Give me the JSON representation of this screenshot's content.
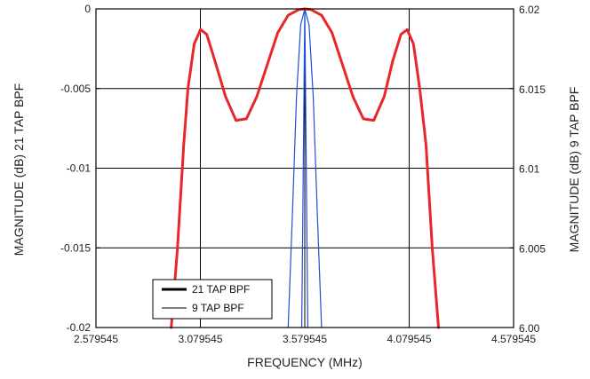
{
  "chart_data": {
    "type": "line",
    "xlabel": "FREQUENCY (MHz)",
    "ylabel_left": "MAGNITUDE (dB) 21 TAP BPF",
    "ylabel_right": "MAGNITUDE (dB) 9 TAP BPF",
    "xlim": [
      2.579545,
      4.579545
    ],
    "ylim_left": [
      -0.02,
      0
    ],
    "ylim_right": [
      6.0,
      6.02
    ],
    "x_ticks": [
      2.579545,
      3.079545,
      3.579545,
      4.079545,
      4.579545
    ],
    "x_tick_labels": [
      "2.579545",
      "3.079545",
      "3.579545",
      "4.079545",
      "4.579545"
    ],
    "y_left_ticks": [
      0,
      -0.005,
      -0.01,
      -0.015,
      -0.02
    ],
    "y_left_tick_labels": [
      "0",
      "-0.005",
      "-0.01",
      "-0.015",
      "-0.02"
    ],
    "y_right_ticks": [
      6.02,
      6.015,
      6.01,
      6.005,
      6.0
    ],
    "y_right_tick_labels": [
      "6.02",
      "6.015",
      "6.01",
      "6.005",
      "6.00"
    ],
    "grid": true,
    "legend_position": "bottom-left",
    "series": [
      {
        "name": "21 TAP BPF",
        "axis": "left",
        "color": "#e8272a",
        "legend_color": "#000000",
        "x": [
          2.94,
          2.97,
          3.0,
          3.02,
          3.05,
          3.08,
          3.11,
          3.15,
          3.2,
          3.25,
          3.3,
          3.35,
          3.4,
          3.45,
          3.5,
          3.55,
          3.58,
          3.61,
          3.66,
          3.71,
          3.76,
          3.81,
          3.86,
          3.91,
          3.96,
          4.0,
          4.04,
          4.07,
          4.1,
          4.13,
          4.16,
          4.19,
          4.22
        ],
        "values": [
          -0.0201,
          -0.015,
          -0.0085,
          -0.005,
          -0.0022,
          -0.0013,
          -0.0016,
          -0.0033,
          -0.0055,
          -0.007,
          -0.0069,
          -0.0055,
          -0.0035,
          -0.0015,
          -0.0004,
          -5e-05,
          0.0,
          -5e-05,
          -0.0004,
          -0.0015,
          -0.0035,
          -0.0055,
          -0.0069,
          -0.007,
          -0.0055,
          -0.0033,
          -0.0016,
          -0.0013,
          -0.0022,
          -0.005,
          -0.0085,
          -0.015,
          -0.0201
        ]
      },
      {
        "name": "9 TAP BPF",
        "axis": "right",
        "color": "#1f4fd6",
        "legend_color": "#000000",
        "x": [
          3.5,
          3.52,
          3.54,
          3.56,
          3.579545,
          3.6,
          3.62,
          3.64,
          3.66
        ],
        "values": [
          6.0,
          6.007,
          6.0145,
          6.019,
          6.02,
          6.019,
          6.0145,
          6.007,
          6.0
        ]
      },
      {
        "name": "",
        "axis": "left",
        "color": "#1f4fd6",
        "legend_color": "#000000",
        "x": [
          3.565,
          3.579545,
          3.594
        ],
        "values": [
          -0.02,
          0.0,
          -0.02
        ]
      }
    ]
  }
}
